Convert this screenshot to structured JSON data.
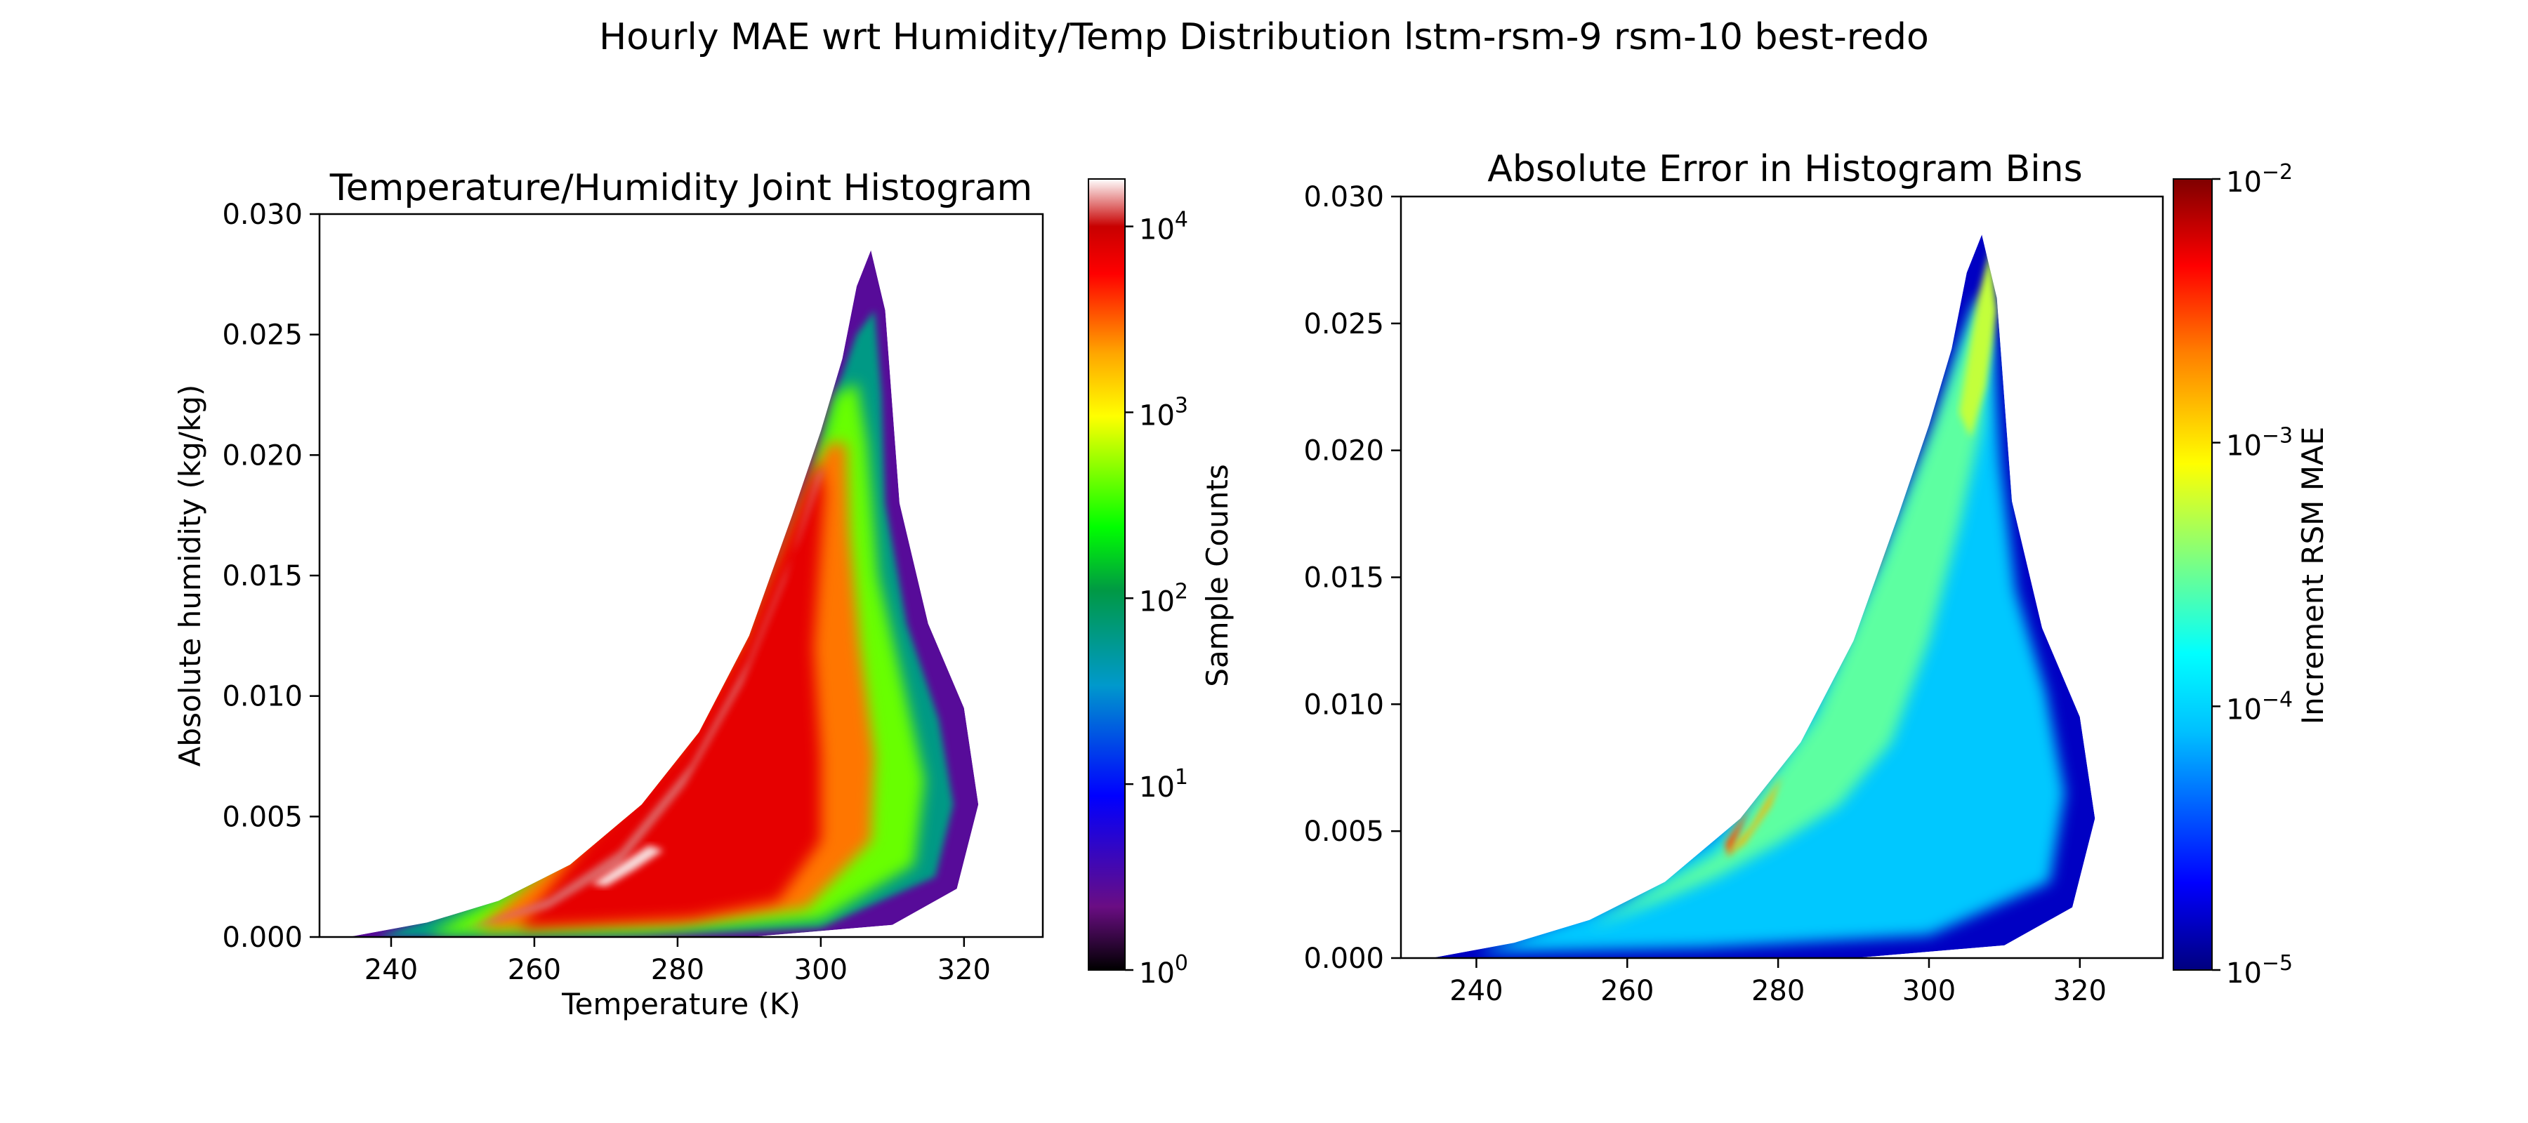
{
  "figure": {
    "suptitle": "Hourly MAE wrt Humidity/Temp Distribution lstm-rsm-9 rsm-10 best-redo"
  },
  "colors": {
    "background": "#ffffff",
    "axes": "#000000",
    "cmap_left": [
      "#000000",
      "#6a0d83",
      "#0000ff",
      "#0099cc",
      "#009944",
      "#00ff00",
      "#ffff00",
      "#ffa500",
      "#ff0000",
      "#c80000",
      "#ffffff"
    ],
    "cmap_right": [
      "#00007f",
      "#0000ff",
      "#00bfff",
      "#00ffff",
      "#7fff7f",
      "#ffff00",
      "#ff7f00",
      "#ff0000",
      "#7f0000"
    ]
  },
  "chart_data": [
    {
      "type": "heatmap",
      "title": "Temperature/Humidity Joint Histogram",
      "xlabel": "Temperature (K)",
      "ylabel": "Absolute humidity (kg/kg)",
      "xlim": [
        230,
        331
      ],
      "ylim": [
        0.0,
        0.03
      ],
      "x_ticks": [
        240,
        260,
        280,
        300,
        320
      ],
      "x_tick_labels": [
        "240",
        "260",
        "280",
        "300",
        "320"
      ],
      "y_ticks": [
        0.0,
        0.005,
        0.01,
        0.015,
        0.02,
        0.025,
        0.03
      ],
      "y_tick_labels": [
        "0.000",
        "0.005",
        "0.010",
        "0.015",
        "0.020",
        "0.025",
        "0.030"
      ],
      "grid": false,
      "colorbar": {
        "label": "Sample Counts",
        "scale": "log",
        "range": [
          1,
          18000
        ],
        "ticks": [
          1,
          10,
          100,
          1000,
          10000
        ],
        "tick_bases": [
          "10",
          "10",
          "10",
          "10",
          "10"
        ],
        "tick_exponents": [
          "0",
          "1",
          "2",
          "3",
          "4"
        ]
      },
      "region_outline": [
        [
          234,
          0.0
        ],
        [
          250,
          0.0
        ],
        [
          270,
          0.0
        ],
        [
          290,
          0.0
        ],
        [
          310,
          0.0005
        ],
        [
          319,
          0.002
        ],
        [
          322,
          0.0055
        ],
        [
          320,
          0.0095
        ],
        [
          315,
          0.013
        ],
        [
          311,
          0.018
        ],
        [
          310,
          0.022
        ],
        [
          309,
          0.026
        ],
        [
          307,
          0.0285
        ],
        [
          305,
          0.027
        ],
        [
          303,
          0.024
        ],
        [
          300,
          0.021
        ],
        [
          296,
          0.0175
        ],
        [
          290,
          0.0125
        ],
        [
          283,
          0.0085
        ],
        [
          275,
          0.0055
        ],
        [
          265,
          0.003
        ],
        [
          255,
          0.0015
        ],
        [
          245,
          0.0006
        ],
        [
          234,
          0.0
        ]
      ],
      "zones": [
        {
          "band": "edge",
          "log10_counts": 0.5
        },
        {
          "band": "outer",
          "log10_counts": 1.5
        },
        {
          "band": "middle",
          "log10_counts": 2.3
        },
        {
          "band": "inner",
          "log10_counts": 3.1
        },
        {
          "band": "core",
          "log10_counts": 3.6
        },
        {
          "band": "ridge",
          "log10_counts": 4.0
        },
        {
          "band": "peak",
          "log10_counts": 4.2
        }
      ]
    },
    {
      "type": "heatmap",
      "title": "Absolute Error in Histogram Bins",
      "xlabel": "",
      "ylabel": "",
      "xlim": [
        230,
        331
      ],
      "ylim": [
        0.0,
        0.03
      ],
      "x_ticks": [
        240,
        260,
        280,
        300,
        320
      ],
      "x_tick_labels": [
        "240",
        "260",
        "280",
        "300",
        "320"
      ],
      "y_ticks": [
        0.0,
        0.005,
        0.01,
        0.015,
        0.02,
        0.025,
        0.03
      ],
      "y_tick_labels": [
        "0.000",
        "0.005",
        "0.010",
        "0.015",
        "0.020",
        "0.025",
        "0.030"
      ],
      "grid": false,
      "colorbar": {
        "label": "Increment RSM MAE",
        "scale": "log",
        "range": [
          1e-05,
          0.01
        ],
        "ticks": [
          1e-05,
          0.0001,
          0.001,
          0.01
        ],
        "tick_bases": [
          "10",
          "10",
          "10",
          "10"
        ],
        "tick_exponents": [
          "−5",
          "−4",
          "−3",
          "−2"
        ]
      },
      "region_outline": [
        [
          234,
          0.0
        ],
        [
          250,
          0.0
        ],
        [
          270,
          0.0
        ],
        [
          290,
          0.0
        ],
        [
          310,
          0.0005
        ],
        [
          319,
          0.002
        ],
        [
          322,
          0.0055
        ],
        [
          320,
          0.0095
        ],
        [
          315,
          0.013
        ],
        [
          311,
          0.018
        ],
        [
          310,
          0.022
        ],
        [
          309,
          0.026
        ],
        [
          307,
          0.0285
        ],
        [
          305,
          0.027
        ],
        [
          303,
          0.024
        ],
        [
          300,
          0.021
        ],
        [
          296,
          0.0175
        ],
        [
          290,
          0.0125
        ],
        [
          283,
          0.0085
        ],
        [
          275,
          0.0055
        ],
        [
          265,
          0.003
        ],
        [
          255,
          0.0015
        ],
        [
          245,
          0.0006
        ],
        [
          234,
          0.0
        ]
      ],
      "zones": [
        {
          "band": "edge",
          "log10_mae": -4.8
        },
        {
          "band": "outer",
          "log10_mae": -4.2
        },
        {
          "band": "middle",
          "log10_mae": -3.6
        },
        {
          "band": "inner",
          "log10_mae": -3.3
        },
        {
          "band": "ridge",
          "log10_mae": -2.6
        },
        {
          "band": "peak",
          "log10_mae": -2.9
        }
      ]
    }
  ]
}
